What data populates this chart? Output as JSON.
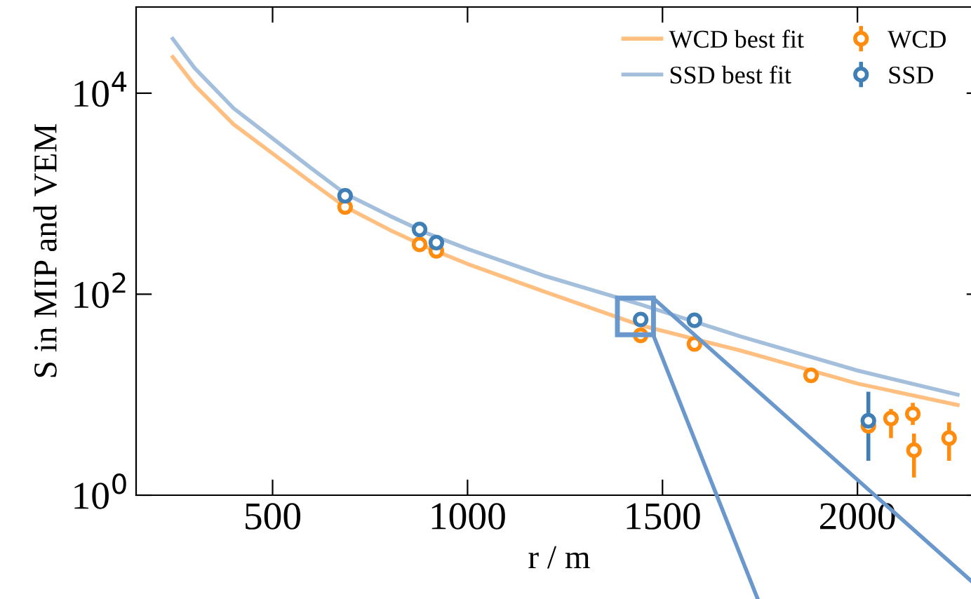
{
  "chart_data": {
    "type": "scatter",
    "xlabel": "r / m",
    "ylabel": "S in MIP and VEM",
    "log": "y",
    "xlim": [
      150,
      2320
    ],
    "ylim": [
      1,
      72000
    ],
    "xticks": [
      500,
      1000,
      1500,
      2000
    ],
    "yticks": [
      {
        "value": 1,
        "label": "10$^{0}$"
      },
      {
        "value": 100,
        "label": "10$^{2}$"
      },
      {
        "value": 10000,
        "label": "10$^{4}$"
      }
    ],
    "grid": false,
    "legend": "top right",
    "series": [
      {
        "name": "WCD best fit",
        "type": "line",
        "marker": "none",
        "color": "#ffbf80",
        "x": [
          244,
          300,
          400,
          500,
          600,
          686,
          800,
          900,
          1000,
          1200,
          1444,
          1700,
          2000,
          2257
        ],
        "values": [
          22900,
          12000,
          4900,
          2510,
          1290,
          741,
          437,
          288,
          200,
          105,
          49,
          27.5,
          12.9,
          7.9
        ]
      },
      {
        "name": "SSD best fit",
        "type": "line",
        "marker": "none",
        "color": "#a3bfdc",
        "x": [
          244,
          300,
          400,
          500,
          600,
          686,
          800,
          900,
          1000,
          1200,
          1444,
          1700,
          2000,
          2257
        ],
        "values": [
          34700,
          17800,
          7080,
          3550,
          1780,
          1000,
          603,
          398,
          282,
          151,
          79,
          38,
          17.4,
          10
        ]
      },
      {
        "name": "WCD",
        "marker": "circle",
        "color": "#ff8c0f",
        "x": [
          686,
          877,
          920,
          1444,
          1582,
          1881,
          2028,
          2086,
          2142,
          2145,
          2235
        ],
        "values": [
          738,
          313,
          270,
          39,
          32,
          15.6,
          4.9,
          5.8,
          6.45,
          2.8,
          3.7
        ],
        "errors": [
          null,
          null,
          null,
          null,
          null,
          null,
          null,
          [
            3.7,
            7.2
          ],
          [
            5.0,
            8.3
          ],
          [
            1.5,
            4.1
          ],
          [
            2.2,
            5.3
          ]
        ]
      },
      {
        "name": "SSD",
        "marker": "circle",
        "color": "#3f7fb5",
        "x": [
          686,
          877,
          920,
          1444,
          1582,
          2028
        ],
        "values": [
          953,
          441,
          326,
          56,
          55,
          5.5
        ],
        "errors": [
          null,
          null,
          null,
          null,
          null,
          [
            2.2,
            10.7
          ]
        ]
      }
    ]
  }
}
